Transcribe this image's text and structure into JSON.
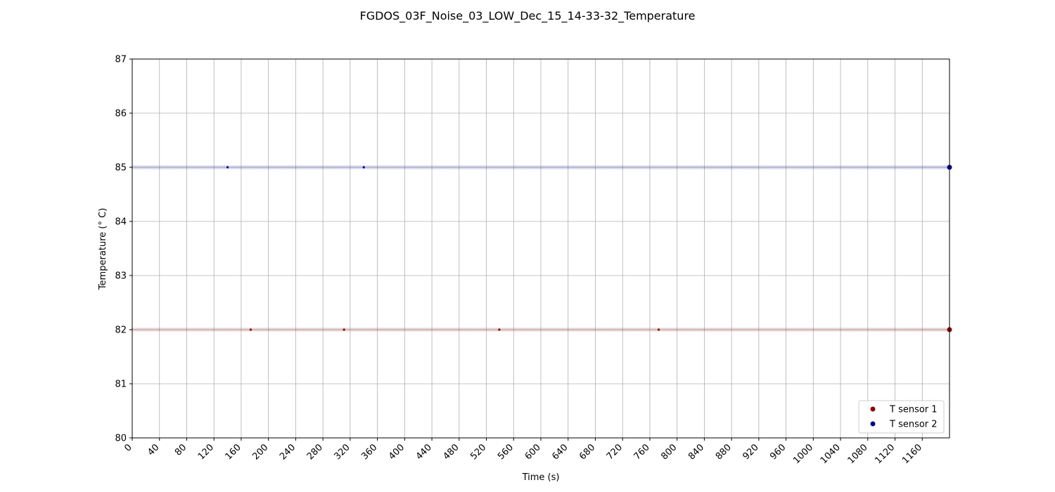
{
  "chart_data": {
    "type": "scatter",
    "title": "FGDOS_03F_Noise_03_LOW_Dec_15_14-33-32_Temperature",
    "xlabel": "Time (s)",
    "ylabel": "Temperature (° C)",
    "xlim": [
      0,
      1200
    ],
    "ylim": [
      80,
      87
    ],
    "x_ticks": [
      0,
      40,
      80,
      120,
      160,
      200,
      240,
      280,
      320,
      360,
      400,
      440,
      480,
      520,
      560,
      600,
      640,
      680,
      720,
      760,
      800,
      840,
      880,
      920,
      960,
      1000,
      1040,
      1080,
      1120,
      1160
    ],
    "y_ticks": [
      80,
      81,
      82,
      83,
      84,
      85,
      86,
      87
    ],
    "grid": true,
    "legend_position": "lower-right",
    "series": [
      {
        "name": "T sensor 1",
        "color": "#8b0000",
        "constant_y": 82,
        "x_start": 0,
        "x_end": 1200,
        "x_step": 2,
        "highlight_x": [
          174,
          311,
          539,
          773,
          1200
        ]
      },
      {
        "name": "T sensor 2",
        "color": "#00008b",
        "constant_y": 85,
        "x_start": 0,
        "x_end": 1200,
        "x_step": 2,
        "highlight_x": [
          140,
          340,
          1200
        ]
      }
    ]
  }
}
